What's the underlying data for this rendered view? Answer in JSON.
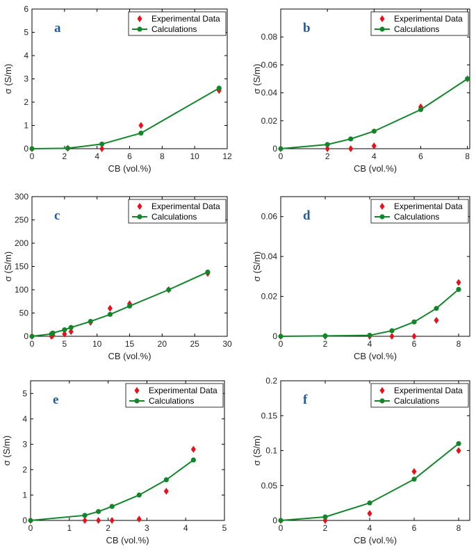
{
  "colors": {
    "experimental": "#e8101a",
    "calculation": "#12852a",
    "letter": "#1f5a9e"
  },
  "legend": {
    "experimental": "Experimental Data",
    "calculation": "Calculations"
  },
  "chart_data": [
    {
      "panel": "a",
      "type": "scatter+line",
      "xlabel": "CB (vol.%)",
      "ylabel": "σ (S/m)",
      "xlim": [
        0,
        12
      ],
      "ylim": [
        0,
        6
      ],
      "xticks": [
        0,
        2,
        4,
        6,
        8,
        10,
        12
      ],
      "yticks": [
        0,
        1,
        2,
        3,
        4,
        5,
        6
      ],
      "xtick_labels": [
        "0",
        "2",
        "4",
        "6",
        "8",
        "10",
        "12"
      ],
      "ytick_labels": [
        "0",
        "1",
        "2",
        "3",
        "4",
        "5",
        "6"
      ],
      "experimental": {
        "x": [
          0,
          2.2,
          4.3,
          6.7,
          11.5
        ],
        "y": [
          0,
          0.02,
          0,
          1.0,
          2.5
        ]
      },
      "calculation": {
        "x": [
          0,
          2.2,
          4.3,
          6.7,
          11.5
        ],
        "y": [
          0,
          0.02,
          0.2,
          0.67,
          2.6
        ]
      }
    },
    {
      "panel": "b",
      "type": "scatter+line",
      "xlabel": "CB (vol.%)",
      "ylabel": "σ (S/m)",
      "xlim": [
        0,
        8.1
      ],
      "ylim": [
        0,
        0.1
      ],
      "xticks": [
        0,
        2,
        4,
        6,
        8
      ],
      "yticks": [
        0,
        0.02,
        0.04,
        0.06,
        0.08
      ],
      "xtick_labels": [
        "0",
        "2",
        "4",
        "6",
        "8"
      ],
      "ytick_labels": [
        "0",
        "0.02",
        "0.04",
        "0.06",
        "0.08"
      ],
      "experimental": {
        "x": [
          0,
          2,
          3,
          4,
          6,
          8
        ],
        "y": [
          0,
          0,
          0,
          0.002,
          0.03,
          0.05
        ]
      },
      "calculation": {
        "x": [
          0,
          2,
          3,
          4,
          6,
          8
        ],
        "y": [
          0,
          0.003,
          0.007,
          0.0125,
          0.028,
          0.05
        ]
      }
    },
    {
      "panel": "c",
      "type": "scatter+line",
      "xlabel": "CB (vol.%)",
      "ylabel": "σ (S/m)",
      "xlim": [
        0,
        30
      ],
      "ylim": [
        0,
        300
      ],
      "xticks": [
        0,
        5,
        10,
        15,
        20,
        25,
        30
      ],
      "yticks": [
        0,
        50,
        100,
        150,
        200,
        250,
        300
      ],
      "xtick_labels": [
        "0",
        "5",
        "10",
        "15",
        "20",
        "25",
        "30"
      ],
      "ytick_labels": [
        "0",
        "50",
        "100",
        "150",
        "200",
        "250",
        "300"
      ],
      "experimental": {
        "x": [
          0,
          3,
          3.2,
          5,
          6,
          9,
          12,
          15,
          21,
          27
        ],
        "y": [
          0,
          0,
          2,
          5,
          10,
          30,
          60,
          70,
          100,
          135
        ]
      },
      "calculation": {
        "x": [
          0,
          3,
          3.2,
          5,
          6,
          9,
          12,
          15,
          21,
          27
        ],
        "y": [
          0,
          5,
          7,
          14,
          19,
          32,
          47,
          65,
          100,
          138
        ]
      }
    },
    {
      "panel": "d",
      "type": "scatter+line",
      "xlabel": "CB (vol.%)",
      "ylabel": "σ (S/m)",
      "xlim": [
        0,
        8.5
      ],
      "ylim": [
        0,
        0.07
      ],
      "xticks": [
        0,
        2,
        4,
        6,
        8
      ],
      "yticks": [
        0,
        0.02,
        0.04,
        0.06
      ],
      "xtick_labels": [
        "0",
        "2",
        "4",
        "6",
        "8"
      ],
      "ytick_labels": [
        "0",
        "0.02",
        "0.04",
        "0.06"
      ],
      "experimental": {
        "x": [
          0,
          2,
          4,
          5,
          6,
          7,
          8
        ],
        "y": [
          0,
          0,
          0,
          0,
          0,
          0.008,
          0.027
        ]
      },
      "calculation": {
        "x": [
          0,
          2,
          4,
          5,
          6,
          7,
          8
        ],
        "y": [
          0,
          0.0002,
          0.0005,
          0.0028,
          0.0072,
          0.014,
          0.0235
        ]
      }
    },
    {
      "panel": "e",
      "type": "scatter+line",
      "xlabel": "CB (vol.%)",
      "ylabel": "σ (S/m)",
      "xlim": [
        0,
        5
      ],
      "ylim": [
        0,
        5.5
      ],
      "xticks": [
        0,
        1,
        2,
        3,
        4,
        5
      ],
      "yticks": [
        0,
        1,
        2,
        3,
        4,
        5
      ],
      "xtick_labels": [
        "0",
        "1",
        "2",
        "3",
        "4",
        "5"
      ],
      "ytick_labels": [
        "0",
        "1",
        "2",
        "3",
        "4",
        "5"
      ],
      "experimental": {
        "x": [
          0,
          1.4,
          1.75,
          2.1,
          2.8,
          3.5,
          4.2
        ],
        "y": [
          0,
          0,
          0,
          0,
          0.05,
          1.15,
          2.8
        ]
      },
      "calculation": {
        "x": [
          0,
          1.4,
          1.75,
          2.1,
          2.8,
          3.5,
          4.2
        ],
        "y": [
          0,
          0.2,
          0.35,
          0.55,
          1.0,
          1.6,
          2.38
        ]
      }
    },
    {
      "panel": "f",
      "type": "scatter+line",
      "xlabel": "CB (vol.%)",
      "ylabel": "σ (S/m)",
      "xlim": [
        0,
        8.5
      ],
      "ylim": [
        0,
        0.2
      ],
      "xticks": [
        0,
        2,
        4,
        6,
        8
      ],
      "yticks": [
        0,
        0.05,
        0.1,
        0.15,
        0.2
      ],
      "xtick_labels": [
        "0",
        "2",
        "4",
        "6",
        "8"
      ],
      "ytick_labels": [
        "0",
        "0.05",
        "0.1",
        "0.15",
        "0.2"
      ],
      "experimental": {
        "x": [
          0,
          2,
          4,
          6,
          8
        ],
        "y": [
          0,
          0,
          0.01,
          0.07,
          0.1
        ]
      },
      "calculation": {
        "x": [
          0,
          2,
          4,
          6,
          8
        ],
        "y": [
          0,
          0.005,
          0.025,
          0.059,
          0.11
        ]
      }
    }
  ]
}
